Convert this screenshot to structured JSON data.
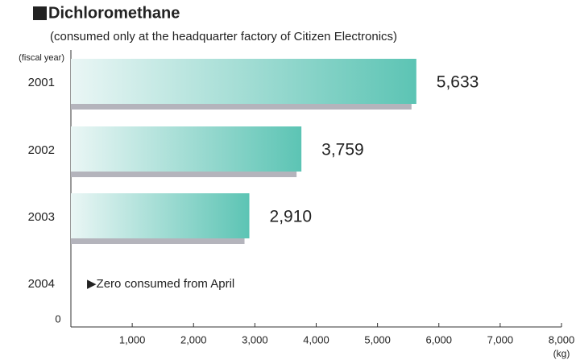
{
  "chart_data": {
    "type": "bar",
    "orientation": "horizontal",
    "title": "Dichloromethane",
    "subtitle": "(consumed only at the headquarter factory of Citizen Electronics)",
    "y_axis_label": "(fiscal year)",
    "x_axis_label": "(kg)",
    "categories": [
      "2001",
      "2002",
      "2003",
      "2004"
    ],
    "values": [
      5633,
      3759,
      2910,
      null
    ],
    "value_labels": [
      "5,633",
      "3,759",
      "2,910",
      null
    ],
    "annotation": "▶Zero consumed from April",
    "color": "#5cc4b4",
    "xlim": [
      0,
      8000
    ],
    "xticks": [
      0,
      {
        "value": 1000,
        "label": "1,000"
      },
      {
        "value": 2000,
        "label": "2,000"
      },
      {
        "value": 3000,
        "label": "3,000"
      },
      {
        "value": 4000,
        "label": "4,000"
      },
      {
        "value": 5000,
        "label": "5,000"
      },
      {
        "value": 6000,
        "label": "6,000"
      },
      {
        "value": 7000,
        "label": "7,000"
      },
      {
        "value": 8000,
        "label": "8,000"
      }
    ]
  }
}
